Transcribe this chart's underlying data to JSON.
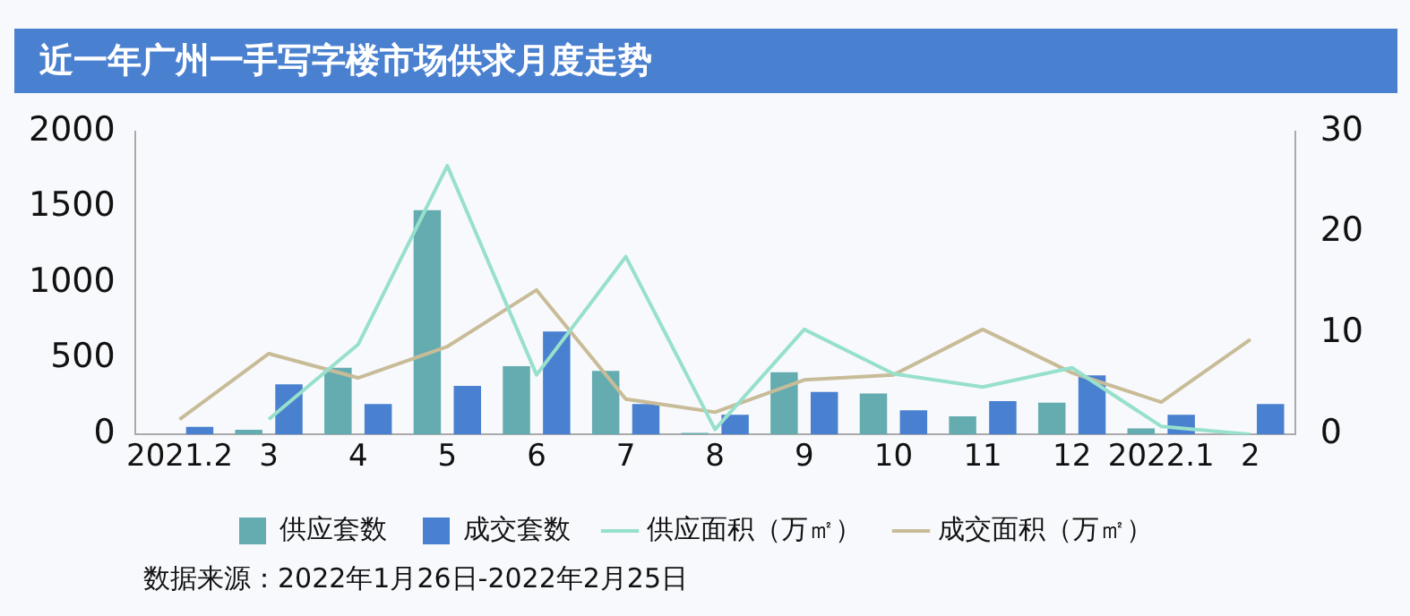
{
  "chart_data": {
    "type": "bar",
    "title": "近一年广州一手写字楼市场供求月度走势",
    "categories": [
      "2021.2",
      "3",
      "4",
      "5",
      "6",
      "7",
      "8",
      "9",
      "10",
      "11",
      "12",
      "2022.1",
      "2"
    ],
    "series": [
      {
        "name": "供应套数",
        "color": "#64acb0",
        "values": [
          0,
          30,
          440,
          1480,
          450,
          420,
          10,
          410,
          270,
          120,
          210,
          40,
          0
        ]
      },
      {
        "name": "成交套数",
        "color": "#4a80d0",
        "values": [
          50,
          330,
          200,
          320,
          680,
          200,
          130,
          280,
          160,
          220,
          390,
          130,
          200
        ]
      },
      {
        "name": "供应面积（万㎡）",
        "type": "line",
        "axis": "y2",
        "color": "#96e0cc",
        "values": [
          null,
          1.5,
          8.9,
          26.6,
          5.9,
          17.6,
          0.5,
          10.4,
          6.0,
          4.7,
          6.6,
          0.8,
          0
        ]
      },
      {
        "name": "成交面积（万㎡）",
        "type": "line",
        "axis": "y2",
        "color": "#c8bc98",
        "values": [
          1.5,
          8.0,
          5.6,
          8.7,
          14.3,
          3.5,
          2.2,
          5.4,
          5.9,
          10.4,
          6.1,
          3.2,
          9.4
        ]
      }
    ],
    "ylim": [
      0,
      2000
    ],
    "yticks": [
      0,
      500,
      1000,
      1500,
      2000
    ],
    "y2lim": [
      0,
      30
    ],
    "y2ticks": [
      0,
      10,
      20,
      30
    ],
    "grid": false,
    "legend": "bottom",
    "marker": "none",
    "line_style": "solid",
    "annotations": [
      "数据来源：2022年1月26日-2022年2月25日"
    ]
  }
}
